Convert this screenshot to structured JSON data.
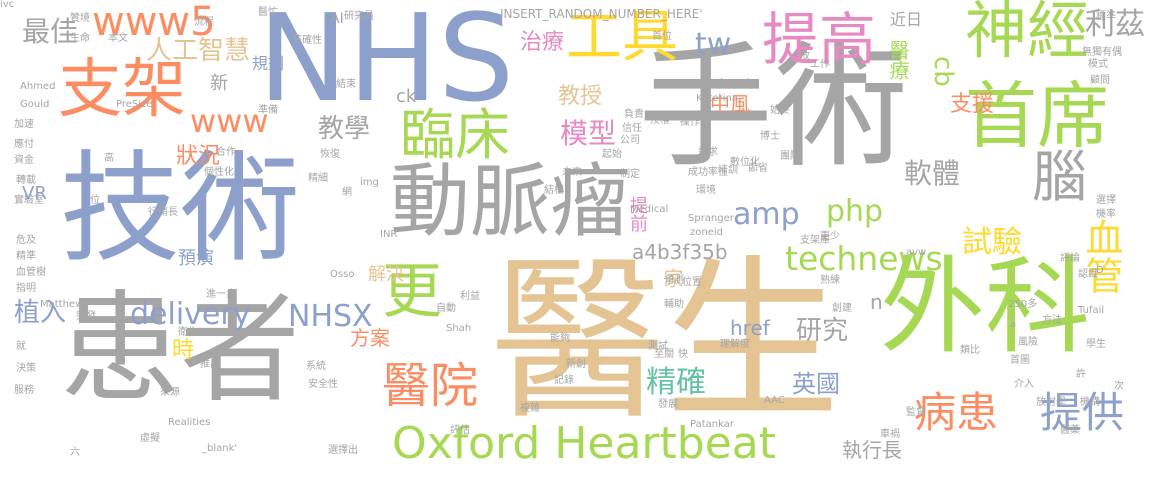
{
  "palette": {
    "gray": "#a5a5a5",
    "blue": "#8da0cb",
    "green": "#a6d854",
    "orange": "#fc8d62",
    "tan": "#e5c494",
    "pink": "#e78ac3",
    "yellow": "#ffd92f",
    "teal": "#66c2a5"
  },
  "words": [
    {
      "text": "醫生",
      "color": "#e5c494"
    },
    {
      "text": "手術",
      "color": "#a5a5a5"
    },
    {
      "text": "技術",
      "color": "#8da0cb"
    },
    {
      "text": "患者",
      "color": "#a5a5a5"
    },
    {
      "text": "NHS",
      "color": "#8da0cb"
    },
    {
      "text": "外科",
      "color": "#a6d854"
    },
    {
      "text": "動脈瘤",
      "color": "#a5a5a5"
    },
    {
      "text": "首席",
      "color": "#a6d854"
    },
    {
      "text": "支架",
      "color": "#fc8d62"
    },
    {
      "text": "神經",
      "color": "#a6d854"
    },
    {
      "text": "提高",
      "color": "#e78ac3"
    },
    {
      "text": "工具",
      "color": "#ffd92f"
    },
    {
      "text": "臨床",
      "color": "#a6d854"
    },
    {
      "text": "更",
      "color": "#a6d854"
    },
    {
      "text": "醫院",
      "color": "#fc8d62"
    },
    {
      "text": "病患",
      "color": "#fc8d62"
    },
    {
      "text": "提供",
      "color": "#8da0cb"
    },
    {
      "text": "Oxford Heartbeat",
      "color": "#a6d854"
    },
    {
      "text": "腦",
      "color": "#a5a5a5"
    },
    {
      "text": "www5",
      "color": "#fc8d62"
    },
    {
      "text": "technews",
      "color": "#a6d854"
    },
    {
      "text": "血管",
      "color": "#ffd92f"
    },
    {
      "text": "delivery",
      "color": "#8da0cb"
    },
    {
      "text": "NHSX",
      "color": "#8da0cb"
    },
    {
      "text": "www",
      "color": "#fc8d62"
    },
    {
      "text": "軟體",
      "color": "#a5a5a5"
    },
    {
      "text": "試驗",
      "color": "#ffd92f"
    },
    {
      "text": "amp",
      "color": "#8da0cb"
    },
    {
      "text": "php",
      "color": "#a6d854"
    },
    {
      "text": "tw",
      "color": "#8da0cb"
    },
    {
      "text": "模型",
      "color": "#e78ac3"
    },
    {
      "text": "精確",
      "color": "#66c2a5"
    },
    {
      "text": "英國",
      "color": "#8da0cb"
    },
    {
      "text": "研究",
      "color": "#a5a5a5"
    },
    {
      "text": "最佳",
      "color": "#a5a5a5"
    },
    {
      "text": "人工智慧",
      "color": "#e5c494"
    },
    {
      "text": "利茲",
      "color": "#a5a5a5"
    },
    {
      "text": "cb",
      "color": "#a6d854"
    },
    {
      "text": "醫療",
      "color": "#a6d854"
    },
    {
      "text": "教學",
      "color": "#a5a5a5"
    },
    {
      "text": "植入",
      "color": "#8da0cb"
    },
    {
      "text": "治療",
      "color": "#e78ac3"
    },
    {
      "text": "教授",
      "color": "#e5c494"
    },
    {
      "text": "中風",
      "color": "#fc8d62"
    },
    {
      "text": "支援",
      "color": "#fc8d62"
    },
    {
      "text": "a4b3f35b",
      "color": "#a5a5a5"
    },
    {
      "text": "執行長",
      "color": "#a5a5a5"
    },
    {
      "text": "href",
      "color": "#8da0cb"
    },
    {
      "text": "方案",
      "color": "#fc8d62"
    },
    {
      "text": "家",
      "color": "#e5c494"
    },
    {
      "text": "狀況",
      "color": "#fc8d62"
    },
    {
      "text": "VR",
      "color": "#8da0cb"
    },
    {
      "text": "新",
      "color": "#a5a5a5"
    },
    {
      "text": "ck",
      "color": "#a5a5a5"
    },
    {
      "text": "規劃",
      "color": "#8da0cb"
    },
    {
      "text": "近日",
      "color": "#a5a5a5"
    },
    {
      "text": "提前",
      "color": "#e78ac3"
    },
    {
      "text": "預演",
      "color": "#8da0cb"
    },
    {
      "text": "解決",
      "color": "#e5c494"
    },
    {
      "text": "時",
      "color": "#ffd92f"
    },
    {
      "text": "n",
      "color": "#a5a5a5"
    },
    {
      "text": "INSERT_RANDOM_NUMBER_HERE'",
      "color": "#a5a5a5"
    },
    {
      "text": "AI",
      "color": "#a5a5a5"
    },
    {
      "text": "贊境",
      "color": "#a5a5a5"
    },
    {
      "text": "醫忙",
      "color": "#a5a5a5"
    },
    {
      "text": "流程",
      "color": "#a5a5a5"
    },
    {
      "text": "研究員",
      "color": "#a5a5a5"
    },
    {
      "text": "標準",
      "color": "#a5a5a5"
    },
    {
      "text": "生命",
      "color": "#a5a5a5"
    },
    {
      "text": "準確性",
      "color": "#a5a5a5"
    },
    {
      "text": "本文",
      "color": "#a5a5a5"
    },
    {
      "text": "首位",
      "color": "#a5a5a5"
    },
    {
      "text": "無獨有偶",
      "color": "#a5a5a5"
    },
    {
      "text": "target",
      "color": "#a5a5a5"
    },
    {
      "text": "Katerina",
      "color": "#a5a5a5"
    },
    {
      "text": "模式",
      "color": "#a5a5a5"
    },
    {
      "text": "顧問",
      "color": "#a5a5a5"
    },
    {
      "text": "Ahmed",
      "color": "#a5a5a5"
    },
    {
      "text": "PreSize",
      "color": "#a5a5a5"
    },
    {
      "text": "Gould",
      "color": "#a5a5a5"
    },
    {
      "text": "Spranger",
      "color": "#a5a5a5"
    },
    {
      "text": "img",
      "color": "#a5a5a5"
    },
    {
      "text": "Medical",
      "color": "#a5a5a5"
    },
    {
      "text": "zoneid",
      "color": "#a5a5a5"
    },
    {
      "text": "Osso",
      "color": "#a5a5a5"
    },
    {
      "text": "INR",
      "color": "#a5a5a5"
    },
    {
      "text": "Matthew",
      "color": "#a5a5a5"
    },
    {
      "text": "Shah",
      "color": "#a5a5a5"
    },
    {
      "text": "Tufail",
      "color": "#a5a5a5"
    },
    {
      "text": "Patankar",
      "color": "#a5a5a5"
    },
    {
      "text": "Realities",
      "color": "#a5a5a5"
    },
    {
      "text": "_blank'",
      "color": "#a5a5a5"
    },
    {
      "text": "AAC",
      "color": "#a5a5a5"
    },
    {
      "text": "250多",
      "color": "#a5a5a5"
    },
    {
      "text": "avw",
      "color": "#a5a5a5"
    },
    {
      "text": "加速",
      "color": "#a5a5a5"
    },
    {
      "text": "應付",
      "color": "#a5a5a5"
    },
    {
      "text": "資金",
      "color": "#a5a5a5"
    },
    {
      "text": "轉載",
      "color": "#a5a5a5"
    },
    {
      "text": "實驗室",
      "color": "#a5a5a5"
    },
    {
      "text": "指明",
      "color": "#a5a5a5"
    },
    {
      "text": "就",
      "color": "#a5a5a5"
    },
    {
      "text": "決策",
      "color": "#a5a5a5"
    },
    {
      "text": "服務",
      "color": "#a5a5a5"
    },
    {
      "text": "六",
      "color": "#a5a5a5"
    },
    {
      "text": "虛擬",
      "color": "#a5a5a5"
    },
    {
      "text": "來源",
      "color": "#a5a5a5"
    },
    {
      "text": "推出",
      "color": "#a5a5a5"
    },
    {
      "text": "系統",
      "color": "#a5a5a5"
    },
    {
      "text": "安全性",
      "color": "#a5a5a5"
    },
    {
      "text": "選擇出",
      "color": "#a5a5a5"
    },
    {
      "text": "評估",
      "color": "#a5a5a5"
    },
    {
      "text": "複雜",
      "color": "#a5a5a5"
    },
    {
      "text": "發展",
      "color": "#a5a5a5"
    },
    {
      "text": "車禍",
      "color": "#a5a5a5"
    },
    {
      "text": "監督",
      "color": "#a5a5a5"
    },
    {
      "text": "放射學",
      "color": "#a5a5a5"
    },
    {
      "text": "機構",
      "color": "#a5a5a5"
    },
    {
      "text": "介入",
      "color": "#a5a5a5"
    },
    {
      "text": "首圖",
      "color": "#a5a5a5"
    },
    {
      "text": "風險",
      "color": "#a5a5a5"
    },
    {
      "text": "學生",
      "color": "#a5a5a5"
    },
    {
      "text": "選擇",
      "color": "#a5a5a5"
    },
    {
      "text": "機率",
      "color": "#a5a5a5"
    },
    {
      "text": "評論",
      "color": "#a5a5a5"
    },
    {
      "text": "認識",
      "color": "#a5a5a5"
    },
    {
      "text": "方法",
      "color": "#a5a5a5"
    },
    {
      "text": "創建",
      "color": "#a5a5a5"
    },
    {
      "text": "熟練",
      "color": "#a5a5a5"
    },
    {
      "text": "位置",
      "color": "#a5a5a5"
    },
    {
      "text": "環境",
      "color": "#a5a5a5"
    },
    {
      "text": "培訓",
      "color": "#a5a5a5"
    },
    {
      "text": "成功率性",
      "color": "#a5a5a5"
    },
    {
      "text": "團隊",
      "color": "#a5a5a5"
    },
    {
      "text": "博士",
      "color": "#a5a5a5"
    },
    {
      "text": "需求",
      "color": "#a5a5a5"
    },
    {
      "text": "數位化",
      "color": "#a5a5a5"
    },
    {
      "text": "節省",
      "color": "#a5a5a5"
    },
    {
      "text": "起始",
      "color": "#a5a5a5"
    },
    {
      "text": "未來",
      "color": "#a5a5a5"
    },
    {
      "text": "恢復",
      "color": "#a5a5a5"
    },
    {
      "text": "合作",
      "color": "#a5a5a5"
    },
    {
      "text": "個性化",
      "color": "#a5a5a5"
    },
    {
      "text": "精細",
      "color": "#a5a5a5"
    },
    {
      "text": "負責",
      "color": "#a5a5a5"
    },
    {
      "text": "信任",
      "color": "#a5a5a5"
    },
    {
      "text": "授權",
      "color": "#a5a5a5"
    },
    {
      "text": "操作",
      "color": "#a5a5a5"
    },
    {
      "text": "公司",
      "color": "#a5a5a5"
    },
    {
      "text": "始終",
      "color": "#a5a5a5"
    },
    {
      "text": "工作",
      "color": "#a5a5a5"
    },
    {
      "text": "準備",
      "color": "#a5a5a5"
    },
    {
      "text": "結束",
      "color": "#a5a5a5"
    },
    {
      "text": "高",
      "color": "#a5a5a5"
    },
    {
      "text": "位",
      "color": "#a5a5a5"
    },
    {
      "text": "行銷長",
      "color": "#a5a5a5"
    },
    {
      "text": "危及",
      "color": "#a5a5a5"
    },
    {
      "text": "精準",
      "color": "#a5a5a5"
    },
    {
      "text": "血管樹",
      "color": "#a5a5a5"
    },
    {
      "text": "進一步",
      "color": "#a5a5a5"
    },
    {
      "text": "衛生",
      "color": "#a5a5a5"
    },
    {
      "text": "突發",
      "color": "#a5a5a5"
    },
    {
      "text": "自動",
      "color": "#a5a5a5"
    },
    {
      "text": "利益",
      "color": "#a5a5a5"
    },
    {
      "text": "預測",
      "color": "#a5a5a5"
    },
    {
      "text": "輔助",
      "color": "#a5a5a5"
    },
    {
      "text": "至關",
      "color": "#a5a5a5"
    },
    {
      "text": "測試",
      "color": "#a5a5a5"
    },
    {
      "text": "快",
      "color": "#a5a5a5"
    },
    {
      "text": "能夠",
      "color": "#a5a5a5"
    },
    {
      "text": "新創",
      "color": "#a5a5a5"
    },
    {
      "text": "記錄",
      "color": "#a5a5a5"
    },
    {
      "text": "類比",
      "color": "#a5a5a5"
    },
    {
      "text": "許",
      "color": "#a5a5a5"
    },
    {
      "text": "次",
      "color": "#a5a5a5"
    },
    {
      "text": "支架庫",
      "color": "#a5a5a5"
    },
    {
      "text": "更少",
      "color": "#a5a5a5"
    },
    {
      "text": "放",
      "color": "#a5a5a5"
    },
    {
      "text": "理解度",
      "color": "#a5a5a5"
    },
    {
      "text": "制定",
      "color": "#a5a5a5"
    },
    {
      "text": "D",
      "color": "#a5a5a5"
    },
    {
      "text": "a",
      "color": "#a5a5a5"
    },
    {
      "text": "結構",
      "color": "#a5a5a5"
    },
    {
      "text": "醫藥",
      "color": "#a5a5a5"
    },
    {
      "text": "網",
      "color": "#a5a5a5"
    },
    {
      "text": "ivc",
      "color": "#a5a5a5"
    }
  ]
}
